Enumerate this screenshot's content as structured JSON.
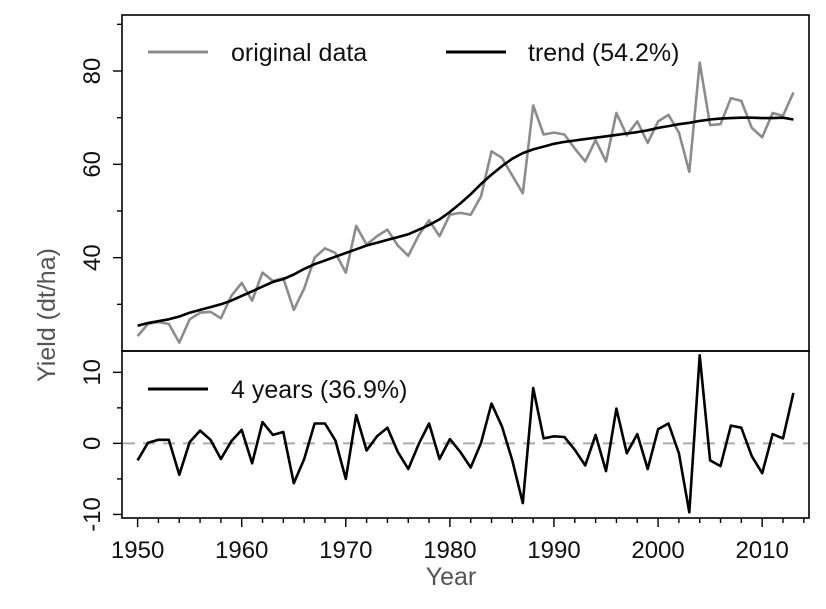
{
  "chart_data": [
    {
      "panel": "top",
      "type": "line",
      "ylabel": "Yield (dt/ha)",
      "xlabel": "Year",
      "ylim": [
        20,
        92
      ],
      "xlim": [
        1948.5,
        2014.5
      ],
      "xticks": [
        1950,
        1960,
        1970,
        1980,
        1990,
        2000,
        2010
      ],
      "yticks": [
        40,
        60,
        80
      ],
      "legend_position": "top",
      "x": [
        1950,
        1951,
        1952,
        1953,
        1954,
        1955,
        1956,
        1957,
        1958,
        1959,
        1960,
        1961,
        1962,
        1963,
        1964,
        1965,
        1966,
        1967,
        1968,
        1969,
        1970,
        1971,
        1972,
        1973,
        1974,
        1975,
        1976,
        1977,
        1978,
        1979,
        1980,
        1981,
        1982,
        1983,
        1984,
        1985,
        1986,
        1987,
        1988,
        1989,
        1990,
        1991,
        1992,
        1993,
        1994,
        1995,
        1996,
        1997,
        1998,
        1999,
        2000,
        2001,
        2002,
        2003,
        2004,
        2005,
        2006,
        2007,
        2008,
        2009,
        2010,
        2011,
        2012,
        2013
      ],
      "series": [
        {
          "name": "original data",
          "color": "#8c8c8c",
          "values": [
            23.2,
            25.8,
            26.2,
            25.8,
            21.8,
            26.8,
            28.2,
            28.4,
            27.0,
            31.8,
            34.6,
            30.8,
            36.8,
            35.0,
            35.6,
            28.8,
            33.4,
            40.0,
            42.0,
            41.0,
            36.8,
            46.8,
            42.8,
            44.6,
            46.0,
            42.6,
            40.4,
            44.8,
            48.0,
            44.6,
            49.2,
            49.6,
            49.2,
            53.2,
            62.8,
            61.4,
            57.6,
            53.8,
            72.6,
            66.4,
            66.8,
            66.4,
            63.4,
            60.6,
            65.2,
            60.6,
            71.0,
            66.2,
            69.2,
            64.6,
            69.2,
            70.6,
            66.8,
            58.4,
            81.8,
            68.4,
            68.6,
            74.2,
            73.6,
            67.8,
            65.8,
            71.0,
            70.4,
            75.4
          ]
        },
        {
          "name": "trend (54.2%)",
          "color": "#000000",
          "values": [
            25.4,
            26.0,
            26.4,
            26.8,
            27.4,
            28.2,
            28.8,
            29.4,
            30.0,
            30.8,
            31.8,
            32.8,
            33.8,
            34.8,
            35.4,
            36.4,
            37.6,
            38.6,
            39.4,
            40.2,
            41.0,
            41.8,
            42.6,
            43.2,
            43.8,
            44.4,
            45.0,
            46.0,
            47.0,
            48.2,
            49.8,
            51.6,
            53.6,
            55.8,
            57.8,
            59.6,
            61.2,
            62.4,
            63.2,
            63.8,
            64.4,
            64.8,
            65.1,
            65.4,
            65.7,
            66.0,
            66.3,
            66.6,
            66.9,
            67.3,
            67.8,
            68.2,
            68.6,
            68.9,
            69.3,
            69.6,
            69.8,
            69.9,
            70.0,
            70.0,
            69.9,
            69.9,
            70.0,
            69.6
          ]
        }
      ]
    },
    {
      "panel": "bottom",
      "type": "line",
      "xlabel": "Year",
      "ylim": [
        -10.5,
        13
      ],
      "yticks": [
        -10,
        0,
        10
      ],
      "baseline": 0,
      "legend_position": "top-left",
      "x": [
        1950,
        1951,
        1952,
        1953,
        1954,
        1955,
        1956,
        1957,
        1958,
        1959,
        1960,
        1961,
        1962,
        1963,
        1964,
        1965,
        1966,
        1967,
        1968,
        1969,
        1970,
        1971,
        1972,
        1973,
        1974,
        1975,
        1976,
        1977,
        1978,
        1979,
        1980,
        1981,
        1982,
        1983,
        1984,
        1985,
        1986,
        1987,
        1988,
        1989,
        1990,
        1991,
        1992,
        1993,
        1994,
        1995,
        1996,
        1997,
        1998,
        1999,
        2000,
        2001,
        2002,
        2003,
        2004,
        2005,
        2006,
        2007,
        2008,
        2009,
        2010,
        2011,
        2012,
        2013
      ],
      "series": [
        {
          "name": "4 years (36.9%)",
          "color": "#000000",
          "values": [
            -2.4,
            0.1,
            0.5,
            0.5,
            -4.4,
            0.2,
            1.8,
            0.5,
            -2.2,
            0.3,
            1.9,
            -2.8,
            3.0,
            1.2,
            1.6,
            -5.6,
            -2.2,
            2.8,
            2.8,
            0.4,
            -5.0,
            4.0,
            -1.0,
            1.0,
            2.2,
            -1.2,
            -3.6,
            -0.1,
            2.8,
            -2.2,
            0.6,
            -1.2,
            -3.4,
            0.1,
            5.6,
            2.4,
            -2.4,
            -8.4,
            7.8,
            0.7,
            1.0,
            0.9,
            -0.9,
            -3.1,
            1.2,
            -3.9,
            4.9,
            -1.4,
            1.3,
            -3.6,
            2.0,
            2.8,
            -1.4,
            -9.7,
            12.4,
            -2.4,
            -3.2,
            2.5,
            2.2,
            -1.8,
            -4.2,
            1.3,
            0.7,
            7.1
          ]
        }
      ]
    }
  ]
}
